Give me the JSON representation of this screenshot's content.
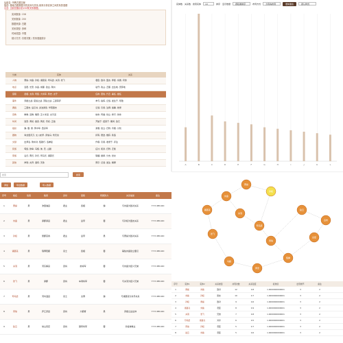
{
  "left_top": {
    "meta": [
      "后起名: 宗教古籍文献",
      "描述: 基础古籍数据中的实体与关系,用来分析实体之间关系的强弱"
    ],
    "warning": "注意: 当前仅展示前200条关系数据。",
    "info": [
      "实体数量: 158",
      "关系数量: 200",
      "数据来源: 古籍",
      "关系类型: 多种",
      "时间范围: 不限",
      "统计方式: 共现次数 / 关系强度统计"
    ],
    "table_header": [
      "分类",
      "实体",
      "关系"
    ],
    "table_rows": [
      {
        "cat": "人物",
        "a": "曹操, 刘备, 孙权, 诸葛亮, 司马懿, 关羽, 张飞",
        "b": "君臣, 敌对, 盟友, 师徒, 亲属, 同僚"
      },
      {
        "cat": "地点",
        "a": "洛阳, 长安, 许昌, 成都, 建业, 荆州",
        "b": "驻守, 攻占, 迁都, 出生地, 安葬地"
      },
      {
        "cat": "官职",
        "a": "丞相, 太尉, 司徒, 大将军, 刺史, 太守",
        "b": "任命, 罢免, 升迁, 兼任, 继任"
      },
      {
        "cat": "事件",
        "a": "赤壁之战, 官渡之战, 夷陵之战, 三顾茅庐",
        "b": "参与, 指挥, 记载, 发生于, 导致"
      },
      {
        "cat": "典籍",
        "a": "三国志, 后汉书, 资治通鉴, 华阳国志",
        "b": "记载, 引用, 注释, 编纂, 收录"
      },
      {
        "cat": "宗教",
        "a": "佛教, 道教, 儒家, 五斗米道, 太平道",
        "b": "信奉, 传播, 创立, 修行, 供奉"
      },
      {
        "cat": "时间",
        "a": "建安, 黄初, 章武, 黄武, 景初, 正始",
        "b": "开始于, 结束于, 期间, 改元"
      },
      {
        "cat": "组织",
        "a": "魏, 蜀, 吴, 黄巾军, 西凉军",
        "b": "隶属, 建立, 归附, 背叛, 讨伐"
      },
      {
        "cat": "器物",
        "a": "青龙偃月刀, 丈八蛇矛, 赤兔马, 倚天剑",
        "b": "持有, 赠送, 缴获, 铸造"
      },
      {
        "cat": "文献",
        "a": "出师表, 隆中对, 短歌行, 洛神赋",
        "b": "作者, 引用, 收录于, 评注"
      },
      {
        "cat": "民族",
        "a": "匈奴, 鲜卑, 乌桓, 羌, 氐, 山越",
        "b": "征讨, 和亲, 归附, 迁徙"
      },
      {
        "cat": "家族",
        "a": "袁氏, 曹氏, 孙氏, 司马氏, 诸葛氏",
        "b": "联姻, 继承, 分支, 世交"
      },
      {
        "cat": "其他",
        "a": "祥瑞, 灾异, 谶纬, 天象",
        "b": "预示, 记载, 发生, 解释"
      }
    ]
  },
  "toolbar": {
    "items": [
      "实体数",
      "关系数",
      "搜索实体",
      "排序",
      "显示数量",
      "布局方式"
    ],
    "input_value": "10",
    "select1": "按权重排序",
    "select2": "力导向布局",
    "btn": "更新图表",
    "select3": "默认样式"
  },
  "chart_data": {
    "type": "bar",
    "categories": [
      "A",
      "B",
      "C",
      "D",
      "E",
      "F",
      "G",
      "H",
      "I",
      "J",
      "K",
      "L"
    ],
    "values": [
      23,
      100,
      31,
      27,
      26,
      25,
      23,
      22,
      21,
      20,
      19,
      18
    ],
    "title": "",
    "xlabel": "",
    "ylabel": "",
    "ylim": [
      0,
      100
    ]
  },
  "left_bottom": {
    "search_placeholder": "搜索",
    "search_btn": "搜索",
    "btn_add": "添加",
    "btn_export": "导出数据",
    "btn_import": "导入数据",
    "header": [
      "序号",
      "姓名",
      "性别",
      "籍贯",
      "身份",
      "官职",
      "所属势力",
      "关系描述",
      "备注"
    ],
    "rows": [
      {
        "i": "1",
        "name": "曹操",
        "sex": "男",
        "place": "沛国谯县",
        "id": "君主",
        "off": "丞相",
        "group": "魏",
        "desc": "与刘备为敌对关系",
        "note": "YYYY-MM-DD"
      },
      {
        "i": "2",
        "name": "刘备",
        "sex": "男",
        "place": "涿郡涿县",
        "id": "君主",
        "off": "皇帝",
        "group": "蜀",
        "desc": "与孙权为盟友关系",
        "note": "YYYY-MM-DD"
      },
      {
        "i": "3",
        "name": "孙权",
        "sex": "男",
        "place": "吴郡富春",
        "id": "君主",
        "off": "皇帝",
        "group": "吴",
        "desc": "与曹操为敌对关系",
        "note": "YYYY-MM-DD"
      },
      {
        "i": "4",
        "name": "诸葛亮",
        "sex": "男",
        "place": "琅琊阳都",
        "id": "谋士",
        "off": "丞相",
        "group": "蜀",
        "desc": "辅佐刘备建立蜀汉",
        "note": "YYYY-MM-DD"
      },
      {
        "i": "5",
        "name": "关羽",
        "sex": "男",
        "place": "河东解良",
        "id": "武将",
        "off": "前将军",
        "group": "蜀",
        "desc": "与刘备为结义兄弟",
        "note": "YYYY-MM-DD"
      },
      {
        "i": "6",
        "name": "张飞",
        "sex": "男",
        "place": "涿郡",
        "id": "武将",
        "off": "车骑将军",
        "group": "蜀",
        "desc": "与关羽为结义兄弟",
        "note": "YYYY-MM-DD"
      },
      {
        "i": "7",
        "name": "司马懿",
        "sex": "男",
        "place": "河内温县",
        "id": "谋士",
        "off": "太傅",
        "group": "魏",
        "desc": "与诸葛亮为对手关系",
        "note": "YYYY-MM-DD"
      },
      {
        "i": "8",
        "name": "周瑜",
        "sex": "男",
        "place": "庐江舒县",
        "id": "武将",
        "off": "大都督",
        "group": "吴",
        "desc": "赤壁之战主帅",
        "note": "YYYY-MM-DD"
      },
      {
        "i": "9",
        "name": "赵云",
        "sex": "男",
        "place": "常山真定",
        "id": "武将",
        "off": "镇军将军",
        "group": "蜀",
        "desc": "长坂坡救主",
        "note": "YYYY-MM-DD"
      }
    ]
  },
  "graph": {
    "nodes": [
      "曹操",
      "刘备",
      "孙权",
      "诸葛亮",
      "关羽",
      "张飞",
      "司马懿",
      "周瑜",
      "赵云",
      "吕布",
      "袁绍",
      "貂蝉",
      "黄忠",
      "马超"
    ]
  },
  "right_bottom": {
    "header": [
      "序号",
      "实体1",
      "实体2",
      "关系类型",
      "共现次数",
      "关系强度",
      "权重值",
      "出现章节",
      "备注"
    ],
    "rows": [
      {
        "i": "1",
        "a": "曹操",
        "b": "刘备",
        "t": "敌对",
        "c": "12",
        "s": "0.8",
        "w": "1.0000000000001",
        "ch": "3",
        "n": "2"
      },
      {
        "i": "2",
        "a": "刘备",
        "b": "孙权",
        "t": "盟友",
        "c": "10",
        "s": "0.7",
        "w": "1.0000000000001",
        "ch": "3",
        "n": "2"
      },
      {
        "i": "3",
        "a": "孙权",
        "b": "曹操",
        "t": "敌对",
        "c": "9",
        "s": "0.6",
        "w": "1.0000000000001",
        "ch": "3",
        "n": "2"
      },
      {
        "i": "4",
        "a": "诸葛亮",
        "b": "刘备",
        "t": "君臣",
        "c": "8",
        "s": "0.9",
        "w": "1.0000000000001",
        "ch": "3",
        "n": "2"
      },
      {
        "i": "5",
        "a": "关羽",
        "b": "张飞",
        "t": "兄弟",
        "c": "7",
        "s": "0.8",
        "w": "1.0000000000001",
        "ch": "3",
        "n": "2"
      },
      {
        "i": "6",
        "a": "司马懿",
        "b": "诸葛亮",
        "t": "对手",
        "c": "6",
        "s": "0.5",
        "w": "1.0000000000001",
        "ch": "3",
        "n": "2"
      },
      {
        "i": "7",
        "a": "周瑜",
        "b": "孙权",
        "t": "君臣",
        "c": "5",
        "s": "0.7",
        "w": "1.0000000000001",
        "ch": "3",
        "n": "2"
      },
      {
        "i": "8",
        "a": "赵云",
        "b": "刘备",
        "t": "君臣",
        "c": "5",
        "s": "0.6",
        "w": "1.0000000000001",
        "ch": "3",
        "n": "2"
      }
    ]
  }
}
